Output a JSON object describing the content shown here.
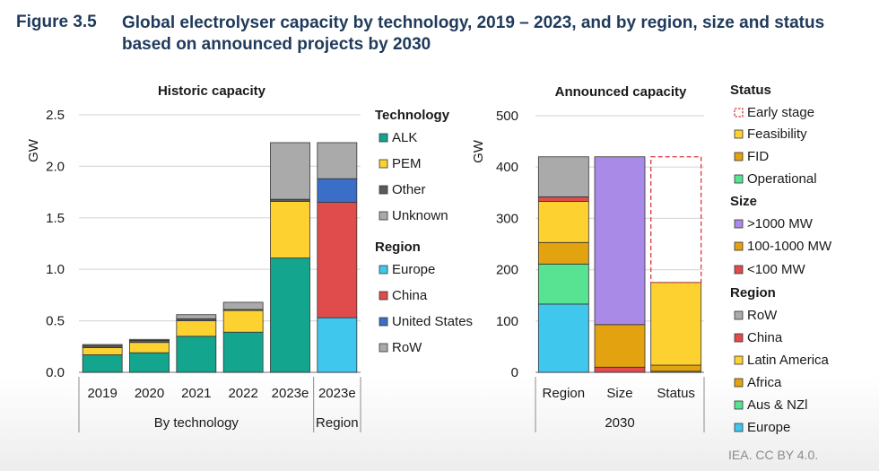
{
  "figure": {
    "number": "Figure 3.5",
    "title": "Global electrolyser capacity by technology, 2019 – 2023, and by region, size and status based on announced projects by 2030"
  },
  "credit": "IEA. CC BY 4.0.",
  "colors": {
    "alk": "#14a58e",
    "pem": "#fcd130",
    "other": "#5a5a5a",
    "unknown": "#aaaaaa",
    "europe": "#3fc7ee",
    "china": "#e04b4b",
    "united_states": "#3b6ec6",
    "row": "#aaaaaa",
    "early_stage_border": "#d9393f",
    "feasibility": "#fcd130",
    "fid": "#e3a20f",
    "operational": "#57e392",
    "gt1000": "#a98ae6",
    "mid_size": "#e3a20f",
    "lt100": "#e04b4b",
    "latin_america": "#fcd130",
    "africa": "#e3a20f",
    "aus_nzl": "#57e392"
  },
  "chart_data": [
    {
      "type": "bar",
      "stacked": true,
      "title": "Historic capacity",
      "ylabel": "GW",
      "ylim": [
        0,
        2.5
      ],
      "yticks": [
        "0.0",
        "0.5",
        "1.0",
        "1.5",
        "2.0",
        "2.5"
      ],
      "categories": [
        "2019",
        "2020",
        "2021",
        "2022",
        "2023e",
        "2023e"
      ],
      "groups": [
        {
          "label": "By technology",
          "span": 5
        },
        {
          "label": "Region",
          "span": 1
        }
      ],
      "series": [
        {
          "name": "ALK",
          "key": "alk",
          "values": [
            0.17,
            0.19,
            0.35,
            0.39,
            1.11,
            0
          ]
        },
        {
          "name": "PEM",
          "key": "pem",
          "values": [
            0.07,
            0.1,
            0.15,
            0.21,
            0.55,
            0
          ]
        },
        {
          "name": "Other",
          "key": "other",
          "values": [
            0.02,
            0.02,
            0.02,
            0.01,
            0.02,
            0
          ]
        },
        {
          "name": "Unknown",
          "key": "unknown",
          "values": [
            0.01,
            0.01,
            0.04,
            0.07,
            0.55,
            0
          ]
        },
        {
          "name": "Europe",
          "key": "europe",
          "values": [
            0,
            0,
            0,
            0,
            0,
            0.53
          ]
        },
        {
          "name": "China",
          "key": "china",
          "values": [
            0,
            0,
            0,
            0,
            0,
            1.12
          ]
        },
        {
          "name": "United States",
          "key": "united_states",
          "values": [
            0,
            0,
            0,
            0,
            0,
            0.23
          ]
        },
        {
          "name": "RoW",
          "key": "row",
          "values": [
            0,
            0,
            0,
            0,
            0,
            0.35
          ]
        }
      ],
      "legend": [
        {
          "title": "Technology",
          "items": [
            {
              "label": "ALK",
              "key": "alk"
            },
            {
              "label": "PEM",
              "key": "pem"
            },
            {
              "label": "Other",
              "key": "other"
            },
            {
              "label": "Unknown",
              "key": "unknown"
            }
          ]
        },
        {
          "title": "Region",
          "items": [
            {
              "label": "Europe",
              "key": "europe"
            },
            {
              "label": "China",
              "key": "china"
            },
            {
              "label": "United States",
              "key": "united_states"
            },
            {
              "label": "RoW",
              "key": "row"
            }
          ]
        }
      ]
    },
    {
      "type": "bar",
      "stacked": true,
      "title": "Announced capacity",
      "ylabel": "GW",
      "ylim": [
        0,
        500
      ],
      "yticks": [
        "0",
        "100",
        "200",
        "300",
        "400",
        "500"
      ],
      "categories": [
        "Region",
        "Size",
        "Status"
      ],
      "groups": [
        {
          "label": "2030",
          "span": 3
        }
      ],
      "series": [
        {
          "name": "Europe",
          "key": "europe",
          "values": [
            133,
            0,
            0
          ]
        },
        {
          "name": "Aus & NZl",
          "key": "aus_nzl",
          "values": [
            78,
            0,
            0
          ]
        },
        {
          "name": "Africa",
          "key": "africa",
          "values": [
            42,
            0,
            0
          ]
        },
        {
          "name": "Latin America",
          "key": "latin_america",
          "values": [
            80,
            0,
            0
          ]
        },
        {
          "name": "China",
          "key": "china",
          "values": [
            9,
            0,
            0
          ]
        },
        {
          "name": "RoW",
          "key": "row",
          "values": [
            78,
            0,
            0
          ]
        },
        {
          "name": "<100 MW",
          "key": "lt100",
          "values": [
            0,
            10,
            0
          ]
        },
        {
          "name": "100-1000 MW",
          "key": "mid_size",
          "values": [
            0,
            83,
            0
          ]
        },
        {
          "name": ">1000 MW",
          "key": "gt1000",
          "values": [
            0,
            327,
            0
          ]
        },
        {
          "name": "Operational",
          "key": "operational",
          "values": [
            0,
            0,
            2
          ]
        },
        {
          "name": "FID",
          "key": "fid",
          "values": [
            0,
            0,
            12
          ]
        },
        {
          "name": "Feasibility",
          "key": "feasibility",
          "values": [
            0,
            0,
            161
          ]
        },
        {
          "name": "Early stage",
          "key": "early_stage",
          "style": "dashed",
          "values": [
            0,
            0,
            245
          ]
        }
      ],
      "legend": [
        {
          "title": "Status",
          "items": [
            {
              "label": "Early stage",
              "key": "early_stage",
              "style": "dashed"
            },
            {
              "label": "Feasibility",
              "key": "feasibility"
            },
            {
              "label": "FID",
              "key": "fid"
            },
            {
              "label": "Operational",
              "key": "operational"
            }
          ]
        },
        {
          "title": "Size",
          "items": [
            {
              "label": ">1000 MW",
              "key": "gt1000"
            },
            {
              "label": "100-1000 MW",
              "key": "mid_size"
            },
            {
              "label": "<100 MW",
              "key": "lt100"
            }
          ]
        },
        {
          "title": "Region",
          "items": [
            {
              "label": "RoW",
              "key": "row"
            },
            {
              "label": "China",
              "key": "china"
            },
            {
              "label": "Latin America",
              "key": "latin_america"
            },
            {
              "label": "Africa",
              "key": "africa"
            },
            {
              "label": "Aus & NZl",
              "key": "aus_nzl"
            },
            {
              "label": "Europe",
              "key": "europe"
            }
          ]
        }
      ]
    }
  ]
}
